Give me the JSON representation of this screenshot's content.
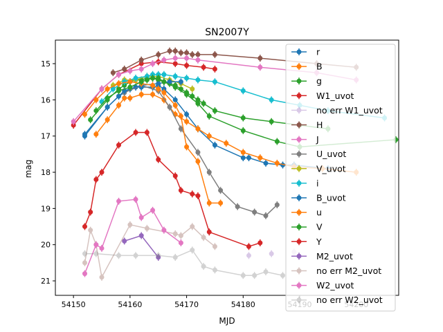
{
  "chart_data": {
    "type": "scatter",
    "title": "SN2007Y",
    "xlabel": "MJD",
    "ylabel": "mag",
    "xlim": [
      54146.8,
      54207.5
    ],
    "ylim": [
      21.4,
      14.35
    ],
    "y_inverted": true,
    "x_ticks": [
      54150,
      54160,
      54170,
      54180,
      54190,
      54200
    ],
    "y_ticks": [
      15,
      16,
      17,
      18,
      19,
      20,
      21
    ],
    "grid": false,
    "legend_position": "upper-right",
    "series": [
      {
        "name": "r",
        "color": "#1f77b4",
        "connected": true,
        "x": [
          54152,
          54156,
          54158,
          54159,
          54160,
          54161,
          54162,
          54164,
          54165,
          54166,
          54168,
          54170,
          54172,
          54175,
          54180,
          54181,
          54184,
          54187,
          54189,
          54195
        ],
        "y": [
          17.0,
          16.2,
          15.9,
          15.8,
          15.7,
          15.65,
          15.65,
          15.65,
          15.6,
          15.7,
          16.0,
          16.4,
          16.8,
          17.25,
          17.6,
          17.6,
          17.75,
          17.8,
          17.8,
          17.9
        ]
      },
      {
        "name": "B",
        "color": "#ff7f0e",
        "connected": true,
        "x": [
          54154,
          54156,
          54158,
          54159,
          54160,
          54162,
          54164,
          54166,
          54168,
          54170,
          54172,
          54174,
          54177,
          54180,
          54183,
          54186,
          54189,
          54194,
          54200
        ],
        "y": [
          16.95,
          16.55,
          16.15,
          15.95,
          15.95,
          15.85,
          15.85,
          16.0,
          16.4,
          16.6,
          16.8,
          17.0,
          17.2,
          17.45,
          17.6,
          17.75,
          17.85,
          17.9,
          18.0
        ]
      },
      {
        "name": "g",
        "color": "#2ca02c",
        "connected": true,
        "x": [
          54153,
          54156,
          54158,
          54159,
          54160,
          54161,
          54162,
          54163,
          54164,
          54165,
          54166,
          54167,
          54168,
          54169,
          54170,
          54171,
          54172,
          54173,
          54175,
          54180,
          54185,
          54190,
          54195
        ],
        "y": [
          16.55,
          16.0,
          15.7,
          15.6,
          15.5,
          15.45,
          15.45,
          15.4,
          15.4,
          15.45,
          15.5,
          15.55,
          15.6,
          15.7,
          15.8,
          15.9,
          16.0,
          16.1,
          16.3,
          16.5,
          16.6,
          16.7,
          16.8
        ]
      },
      {
        "name": "W1_uvot",
        "color": "#d62728",
        "connected": true,
        "x": [
          54150,
          54155,
          54158,
          54162,
          54165,
          54168,
          54170,
          54173,
          54175
        ],
        "y": [
          16.7,
          15.7,
          15.3,
          15.0,
          14.95,
          15.0,
          15.05,
          15.1,
          15.15
        ]
      },
      {
        "name": "no err W1_uvot",
        "color": "#9467bd",
        "connected": false,
        "light": true,
        "x": [
          54181,
          54185,
          54189
        ],
        "y": [
          20.3,
          20.25,
          20.2
        ]
      },
      {
        "name": "H",
        "color": "#8c564b",
        "connected": true,
        "x": [
          54157,
          54159,
          54162,
          54165,
          54167,
          54168,
          54169,
          54170,
          54171,
          54172,
          54175,
          54183,
          54193,
          54200
        ],
        "y": [
          15.25,
          15.15,
          14.9,
          14.75,
          14.65,
          14.65,
          14.7,
          14.7,
          14.75,
          14.75,
          14.75,
          14.85,
          15.0,
          15.1
        ]
      },
      {
        "name": "J",
        "color": "#e377c2",
        "connected": true,
        "x": [
          54150,
          54155,
          54158,
          54160,
          54162,
          54164,
          54166,
          54168,
          54170,
          54172,
          54183,
          54193,
          54200
        ],
        "y": [
          16.6,
          15.7,
          15.3,
          15.2,
          15.15,
          15.0,
          14.9,
          14.85,
          14.85,
          14.9,
          15.1,
          15.25,
          15.45
        ]
      },
      {
        "name": "U_uvot",
        "color": "#7f7f7f",
        "connected": true,
        "x": [
          54159,
          54162,
          54165,
          54167,
          54169,
          54172,
          54174,
          54176,
          54179,
          54182,
          54184,
          54186
        ],
        "y": [
          15.8,
          15.6,
          15.75,
          16.2,
          16.8,
          17.45,
          18.0,
          18.5,
          18.95,
          19.1,
          19.2,
          18.9
        ]
      },
      {
        "name": "V_uvot",
        "color": "#bcbd22",
        "connected": true,
        "x": [
          54157,
          54159,
          54161,
          54163,
          54165,
          54167,
          54169,
          54171
        ],
        "y": [
          15.6,
          15.45,
          15.45,
          15.35,
          15.35,
          15.45,
          15.55,
          15.7
        ]
      },
      {
        "name": "i",
        "color": "#17becf",
        "connected": true,
        "x": [
          54155,
          54157,
          54159,
          54161,
          54163,
          54164,
          54165,
          54166,
          54168,
          54170,
          54172,
          54175,
          54180,
          54185,
          54190,
          54195,
          54205
        ],
        "y": [
          16.05,
          15.7,
          15.5,
          15.4,
          15.35,
          15.3,
          15.3,
          15.3,
          15.35,
          15.4,
          15.45,
          15.5,
          15.75,
          16.0,
          16.15,
          16.3,
          16.5
        ]
      },
      {
        "name": "B_uvot",
        "color": "#1f77b4",
        "connected": true,
        "x": [
          54152,
          54156,
          54159,
          54162,
          54165,
          54167,
          54169
        ],
        "y": [
          16.95,
          16.2,
          15.75,
          15.6,
          15.55,
          15.5,
          15.5
        ]
      },
      {
        "name": "u",
        "color": "#ff7f0e",
        "connected": true,
        "x": [
          54152,
          54154,
          54156,
          54158,
          54160,
          54162,
          54164,
          54165,
          54166,
          54168,
          54169,
          54170,
          54172,
          54174,
          54176
        ],
        "y": [
          16.4,
          16.0,
          15.7,
          15.55,
          15.5,
          15.55,
          15.6,
          15.7,
          15.8,
          16.15,
          16.45,
          17.3,
          17.7,
          18.85,
          18.85
        ]
      },
      {
        "name": "V",
        "color": "#2ca02c",
        "connected": true,
        "x": [
          54154,
          54156,
          54158,
          54160,
          54162,
          54163,
          54164,
          54165,
          54166,
          54168,
          54170,
          54172,
          54174,
          54180,
          54186,
          54190,
          54207
        ],
        "y": [
          16.3,
          15.95,
          15.75,
          15.65,
          15.5,
          15.45,
          15.4,
          15.4,
          15.5,
          15.65,
          15.85,
          16.1,
          16.45,
          16.85,
          17.15,
          17.3,
          17.1
        ]
      },
      {
        "name": "Y",
        "color": "#d62728",
        "connected": true,
        "x": [
          54152,
          54153,
          54154,
          54155,
          54158,
          54161,
          54163,
          54165,
          54168,
          54169,
          54171,
          54172,
          54174,
          54181,
          54183
        ],
        "y": [
          19.5,
          19.1,
          18.2,
          18.0,
          17.25,
          16.9,
          16.9,
          17.65,
          18.1,
          18.5,
          18.6,
          18.65,
          19.65,
          20.05,
          19.95
        ]
      },
      {
        "name": "M2_uvot",
        "color": "#9467bd",
        "connected": true,
        "x": [
          54159,
          54162,
          54165
        ],
        "y": [
          19.9,
          19.75,
          20.35
        ]
      },
      {
        "name": "no err M2_uvot",
        "color": "#8c564b",
        "connected": true,
        "light": true,
        "x": [
          54152,
          54153,
          54154,
          54155,
          54160,
          54163,
          54168,
          54169,
          54171,
          54173,
          54175
        ],
        "y": [
          20.5,
          19.6,
          20.0,
          20.9,
          19.45,
          19.55,
          19.7,
          19.75,
          19.5,
          19.8,
          20.05
        ]
      },
      {
        "name": "W2_uvot",
        "color": "#e377c2",
        "connected": true,
        "x": [
          54152,
          54154,
          54155,
          54158,
          54161,
          54162,
          54164,
          54166,
          54169
        ],
        "y": [
          20.8,
          20.0,
          20.1,
          18.8,
          18.75,
          19.25,
          19.05,
          19.6,
          19.95
        ]
      },
      {
        "name": "no err W2_uvot",
        "color": "#7f7f7f",
        "connected": true,
        "light": true,
        "x": [
          54152,
          54154,
          54158,
          54161,
          54165,
          54168,
          54171,
          54173,
          54175,
          54180,
          54182,
          54184,
          54187
        ],
        "y": [
          20.25,
          20.25,
          20.3,
          20.3,
          20.3,
          20.35,
          20.15,
          20.6,
          20.7,
          20.85,
          20.85,
          20.75,
          20.85
        ]
      }
    ]
  }
}
